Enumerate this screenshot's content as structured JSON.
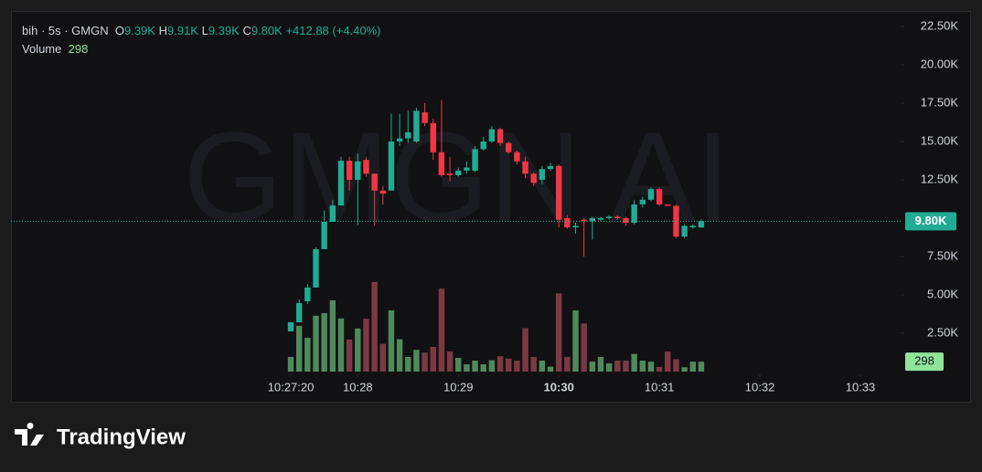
{
  "chart_data": {
    "type": "candlestick",
    "header": {
      "symbol": "bih · 5s · GMGN",
      "open_label": "O",
      "open": "9.39K",
      "high_label": "H",
      "high": "9.91K",
      "low_label": "L",
      "low": "9.39K",
      "close_label": "C",
      "close": "9.80K",
      "change": "+412.88 (+4.40%)",
      "volume_label": "Volume",
      "volume": "298"
    },
    "watermark": "GMGN AI",
    "last_price_label": "9.80K",
    "last_volume_label": "298",
    "x": [
      37640,
      37645,
      37650,
      37655,
      37660,
      37665,
      37670,
      37675,
      37680,
      37685,
      37690,
      37695,
      37700,
      37705,
      37710,
      37715,
      37720,
      37725,
      37730,
      37735,
      37740,
      37745,
      37750,
      37755,
      37760,
      37765,
      37770,
      37775,
      37780,
      37785,
      37790,
      37795,
      37800,
      37805,
      37810,
      37815,
      37820,
      37825,
      37830,
      37835,
      37840,
      37845,
      37850,
      37855,
      37860,
      37865,
      37870,
      37875,
      37880,
      37885
    ],
    "open": [
      2620,
      3210,
      4580,
      5480,
      7980,
      9760,
      10830,
      13750,
      12500,
      13800,
      12900,
      11800,
      11800,
      15000,
      15200,
      15000,
      16900,
      16200,
      14300,
      12900,
      12800,
      13100,
      13100,
      14500,
      15000,
      15800,
      14900,
      14300,
      13700,
      12900,
      12500,
      13200,
      13400,
      10000,
      9400,
      9900,
      9800,
      9900,
      10000,
      10100,
      10000,
      9700,
      10900,
      11200,
      11900,
      10900,
      10800,
      8800,
      9400,
      9390
    ],
    "high": [
      3210,
      4700,
      5700,
      8100,
      10500,
      11200,
      14000,
      14000,
      14200,
      14000,
      12900,
      12100,
      16800,
      16800,
      17000,
      17200,
      17500,
      16500,
      17700,
      14000,
      13300,
      13700,
      14700,
      15300,
      16000,
      15900,
      15000,
      14400,
      14000,
      13000,
      13400,
      13600,
      13500,
      10200,
      9700,
      10000,
      10100,
      10100,
      10200,
      10200,
      10100,
      11200,
      11400,
      12000,
      12000,
      10900,
      10900,
      9600,
      9600,
      9910
    ],
    "low": [
      2620,
      3210,
      4400,
      5480,
      7980,
      9760,
      10830,
      11800,
      9550,
      12700,
      9500,
      10900,
      11800,
      14700,
      14900,
      14900,
      16000,
      13800,
      12700,
      12400,
      12700,
      12900,
      13000,
      14400,
      14900,
      14700,
      14200,
      13500,
      12600,
      12100,
      12200,
      13100,
      9400,
      9300,
      9000,
      7500,
      8600,
      9800,
      9900,
      9900,
      9500,
      9600,
      10700,
      11100,
      10800,
      10800,
      8700,
      8700,
      9300,
      9390
    ],
    "close": [
      3210,
      4460,
      5480,
      7980,
      9760,
      10830,
      13750,
      12500,
      13700,
      12900,
      11800,
      11600,
      15000,
      15200,
      15600,
      17000,
      16200,
      14300,
      12800,
      12800,
      13100,
      13300,
      14500,
      15000,
      15800,
      14900,
      14300,
      13700,
      12900,
      12300,
      13200,
      13400,
      9900,
      9400,
      9500,
      9800,
      10000,
      10000,
      10100,
      10000,
      9700,
      10900,
      11200,
      11900,
      10900,
      10800,
      8800,
      9500,
      9500,
      9800
    ],
    "volume": [
      440,
      1370,
      1010,
      1670,
      1750,
      2130,
      1590,
      960,
      1290,
      1580,
      2680,
      830,
      1830,
      970,
      440,
      650,
      570,
      740,
      2480,
      600,
      410,
      220,
      330,
      220,
      340,
      460,
      390,
      330,
      1300,
      440,
      330,
      150,
      2340,
      440,
      1830,
      1440,
      300,
      440,
      250,
      330,
      330,
      530,
      330,
      300,
      140,
      600,
      370,
      130,
      300,
      298
    ],
    "up_color": "#22ab94",
    "down_color": "#f23645",
    "volume_up_color": "#4f8a5c",
    "volume_down_color": "#7d3943",
    "xlim": [
      37473,
      38004
    ],
    "xticks": [
      {
        "value": 37640,
        "label": "10:27:20"
      },
      {
        "value": 37680,
        "label": "10:28"
      },
      {
        "value": 37740,
        "label": "10:29"
      },
      {
        "value": 37800,
        "label": "10:30",
        "bold": true
      },
      {
        "value": 37860,
        "label": "10:31"
      },
      {
        "value": 37920,
        "label": "10:32"
      },
      {
        "value": 37980,
        "label": "10:33"
      }
    ],
    "ylim": [
      -180,
      23510
    ],
    "yticks": [
      {
        "value": 2500,
        "label": "2.50K"
      },
      {
        "value": 5000,
        "label": "5.00K"
      },
      {
        "value": 7500,
        "label": "7.50K"
      },
      {
        "value": 12500,
        "label": "12.50K"
      },
      {
        "value": 15000,
        "label": "15.00K"
      },
      {
        "value": 17500,
        "label": "17.50K"
      },
      {
        "value": 20000,
        "label": "20.00K"
      },
      {
        "value": 22500,
        "label": "22.50K"
      }
    ],
    "y2lim": [
      -80,
      10780
    ]
  }
}
